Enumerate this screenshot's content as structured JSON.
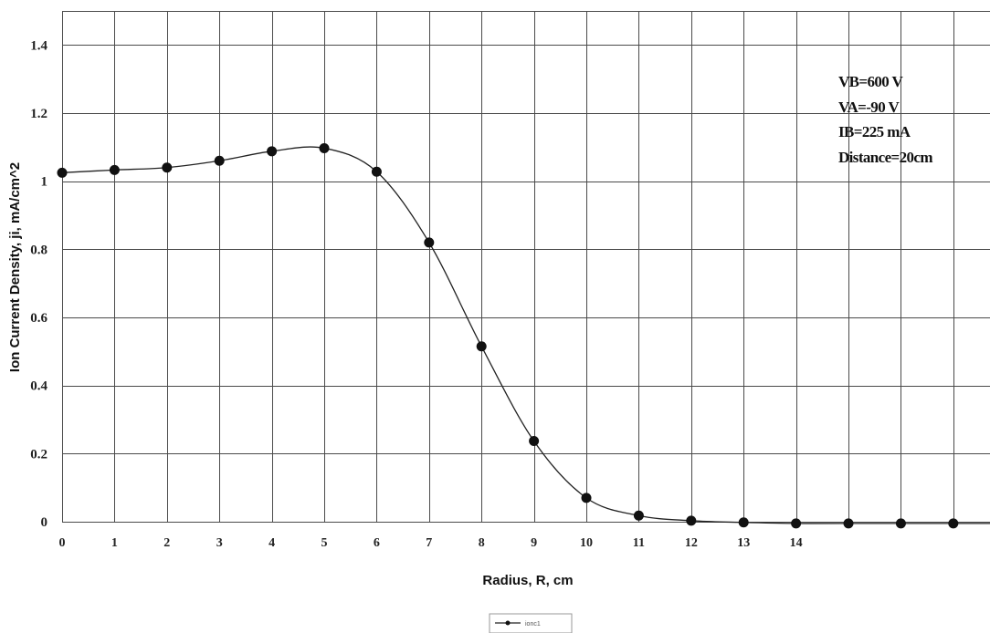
{
  "chart_data": {
    "type": "line",
    "title": "",
    "xlabel": "Radius, R, cm",
    "ylabel": "Ion Current Density, ji, mA/cm^2",
    "xlim": [
      0,
      17.7
    ],
    "ylim": [
      0,
      1.5
    ],
    "x_tick_labels": [
      "0",
      "1",
      "2",
      "3",
      "4",
      "5",
      "6",
      "7",
      "8",
      "9",
      "10",
      "11",
      "12",
      "13",
      "14"
    ],
    "y_tick_labels": [
      "0",
      "0.2",
      "0.4",
      "0.6",
      "0.8",
      "1",
      "1.2",
      "1.4"
    ],
    "y_ticks": [
      0,
      0.2,
      0.4,
      0.6,
      0.8,
      1.0,
      1.2,
      1.4
    ],
    "grid": true,
    "series": [
      {
        "name": "ionc1",
        "color": "#111111",
        "marker": "circle",
        "smooth": true,
        "points": [
          {
            "x": 0,
            "y": 1.025
          },
          {
            "x": 1,
            "y": 1.033
          },
          {
            "x": 2,
            "y": 1.04
          },
          {
            "x": 3,
            "y": 1.06
          },
          {
            "x": 4,
            "y": 1.088
          },
          {
            "x": 5,
            "y": 1.097
          },
          {
            "x": 6,
            "y": 1.028
          },
          {
            "x": 7,
            "y": 0.82
          },
          {
            "x": 8,
            "y": 0.515
          },
          {
            "x": 9,
            "y": 0.237
          },
          {
            "x": 10,
            "y": 0.07
          },
          {
            "x": 11,
            "y": 0.018
          },
          {
            "x": 12,
            "y": 0.003
          },
          {
            "x": 13,
            "y": -0.002
          },
          {
            "x": 14,
            "y": -0.005
          },
          {
            "x": 15,
            "y": -0.005
          },
          {
            "x": 16,
            "y": -0.005
          },
          {
            "x": 17,
            "y": -0.005
          },
          {
            "x": 17.7,
            "y": -0.005
          }
        ]
      }
    ],
    "annotations": [
      "VB=600 V",
      "VA=-90 V",
      "IB=225 mA",
      "Distance=20cm"
    ],
    "legend": {
      "position": "bottom-center",
      "label": "ionc1"
    }
  }
}
